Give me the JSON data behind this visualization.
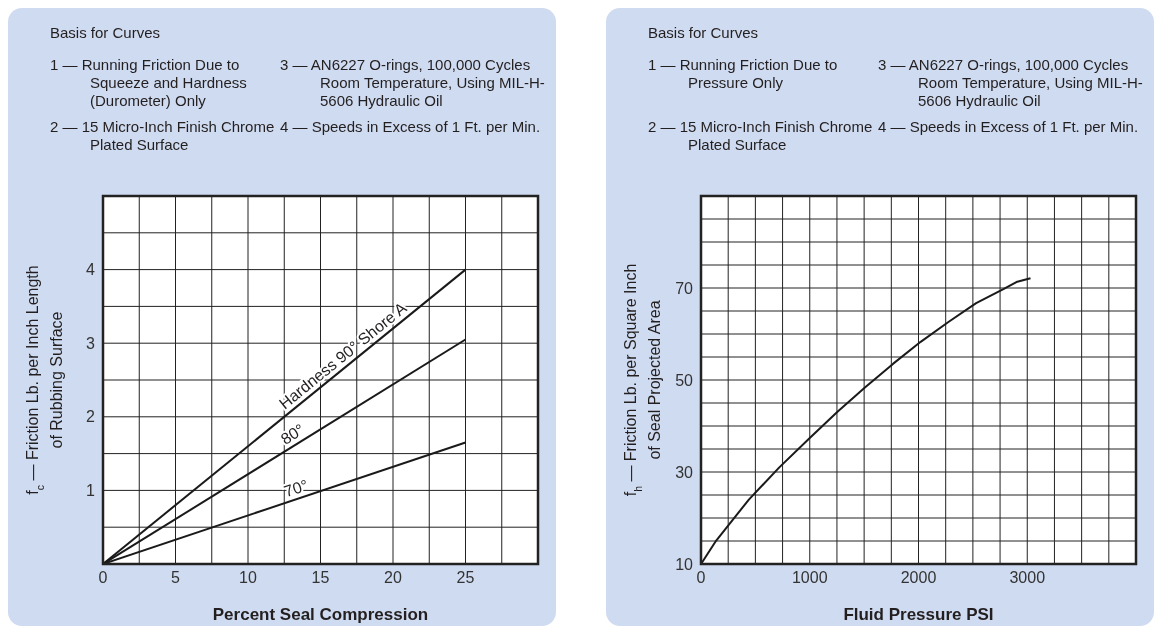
{
  "chart_data": [
    {
      "type": "line",
      "title": "Basis for Curves",
      "annotations": [
        "1 — Running Friction Due to Squeeze and Hardness (Durometer) Only",
        "3 — AN6227 O-rings, 100,000 Cycles Room Temperature, Using MIL-H-5606 Hydraulic Oil",
        "2 — 15 Micro-Inch Finish Chrome Plated Surface",
        "4 — Speeds in Excess of 1 Ft. per Min."
      ],
      "xlabel": "Percent Seal Compression",
      "ylabel": "f$_{c}$ — Friction Lb.  per Inch Length\nof Rubbing Surface",
      "xlim": [
        0,
        30
      ],
      "xticks": [
        0,
        {
          "value": 2.5,
          "label": null
        },
        5,
        {
          "value": 7.5,
          "label": null
        },
        10,
        {
          "value": 12.5,
          "label": null
        },
        15,
        {
          "value": 17.5,
          "label": null
        },
        20,
        {
          "value": 22.5,
          "label": null
        },
        25,
        {
          "value": 27.5,
          "label": null
        },
        {
          "value": 30,
          "label": null
        }
      ],
      "ylim": [
        0,
        5
      ],
      "yticks": [
        {
          "value": 0,
          "label": null
        },
        {
          "value": 0.5,
          "label": null
        },
        1,
        {
          "value": 1.5,
          "label": null
        },
        2,
        {
          "value": 2.5,
          "label": null
        },
        3,
        {
          "value": 3.5,
          "label": null
        },
        4,
        {
          "value": 4.5,
          "label": null
        },
        {
          "value": 5,
          "label": null
        }
      ],
      "grid": true,
      "marker": "none",
      "line_style": "solid",
      "series": [
        {
          "name": "Hardness 90° Shore A",
          "color": "#1a1a1a",
          "x": [
            0,
            25
          ],
          "values": [
            0,
            4
          ]
        },
        {
          "name": "80°",
          "color": "#1a1a1a",
          "x": [
            0,
            25
          ],
          "values": [
            0,
            3.05
          ]
        },
        {
          "name": "70°",
          "color": "#1a1a1a",
          "x": [
            0,
            25
          ],
          "values": [
            0,
            1.65
          ]
        }
      ]
    },
    {
      "type": "line",
      "title": "Basis for Curves",
      "annotations": [
        "1 — Running Friction Due to Pressure Only",
        "3 — AN6227 O-rings, 100,000 Cycles Room Temperature, Using MIL-H-5606 Hydraulic Oil",
        "2 — 15 Micro-Inch Finish Chrome Plated Surface",
        "4 — Speeds in Excess of 1 Ft. per Min."
      ],
      "xlabel": "Fluid Pressure PSI",
      "ylabel": "f$_{h}$ — Friction Lb. per Square Inch\nof Seal Projected Area",
      "xlim": [
        0,
        4000
      ],
      "xticks": [
        0,
        {
          "value": 250,
          "label": null
        },
        {
          "value": 500,
          "label": null
        },
        {
          "value": 750,
          "label": null
        },
        1000,
        {
          "value": 1250,
          "label": null
        },
        {
          "value": 1500,
          "label": null
        },
        {
          "value": 1750,
          "label": null
        },
        2000,
        {
          "value": 2250,
          "label": null
        },
        {
          "value": 2500,
          "label": null
        },
        {
          "value": 2750,
          "label": null
        },
        3000,
        {
          "value": 3250,
          "label": null
        },
        {
          "value": 3500,
          "label": null
        },
        {
          "value": 3750,
          "label": null
        },
        {
          "value": 4000,
          "label": null
        }
      ],
      "ylim": [
        10,
        90
      ],
      "yticks": [
        10,
        {
          "value": 15,
          "label": null
        },
        {
          "value": 20,
          "label": null
        },
        {
          "value": 25,
          "label": null
        },
        30,
        {
          "value": 35,
          "label": null
        },
        {
          "value": 40,
          "label": null
        },
        {
          "value": 45,
          "label": null
        },
        50,
        {
          "value": 55,
          "label": null
        },
        {
          "value": 60,
          "label": null
        },
        {
          "value": 65,
          "label": null
        },
        70,
        {
          "value": 75,
          "label": null
        },
        {
          "value": 80,
          "label": null
        },
        {
          "value": 85,
          "label": null
        },
        {
          "value": 90,
          "label": null
        }
      ],
      "grid": true,
      "marker": "none",
      "line_style": "solid",
      "series": [
        {
          "color": "#1a1a1a",
          "x": [
            0,
            140,
            440,
            720,
            1000,
            1255,
            1510,
            1765,
            2020,
            2275,
            2530,
            2785,
            2900,
            3030
          ],
          "values": [
            10,
            15.1,
            24,
            31,
            37.4,
            43.1,
            48.4,
            53.5,
            58.3,
            62.6,
            66.7,
            69.8,
            71.3,
            72.1
          ]
        }
      ]
    }
  ]
}
